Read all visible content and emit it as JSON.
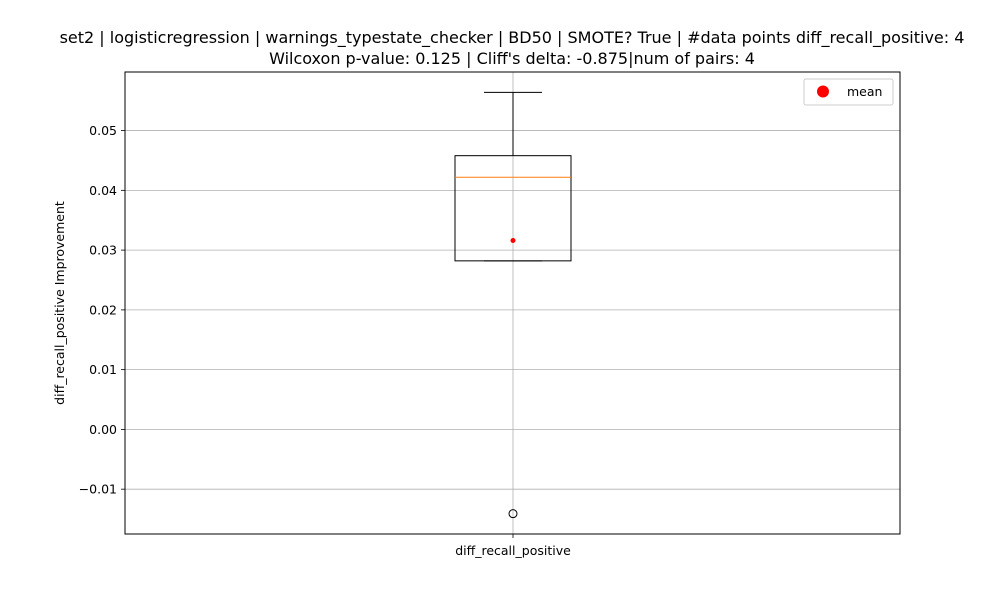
{
  "chart_data": {
    "type": "box",
    "title_line1": "set2 | logisticregression | warnings_typestate_checker | BD50 | SMOTE? True | #data points diff_recall_positive: 4",
    "title_line2": "Wilcoxon p-value: 0.125 | Cliff's delta: -0.875|num of pairs: 4",
    "xlabel": "",
    "ylabel": "diff_recall_positive Improvement",
    "categories": [
      "diff_recall_positive"
    ],
    "ylim": [
      -0.0175,
      0.0598
    ],
    "yticks": [
      -0.01,
      0.0,
      0.01,
      0.02,
      0.03,
      0.04,
      0.05
    ],
    "ytick_labels": [
      "−0.01",
      "0.00",
      "0.01",
      "0.02",
      "0.03",
      "0.04",
      "0.05"
    ],
    "grid": true,
    "box": {
      "whisker_low": 0.0282,
      "q1": 0.0282,
      "median": 0.0422,
      "q3": 0.0458,
      "whisker_high": 0.0564,
      "mean": 0.0316,
      "outliers": [
        -0.0141
      ]
    },
    "legend": {
      "position": "top-right",
      "entries": [
        {
          "label": "mean",
          "color": "#ff0000"
        }
      ]
    },
    "colors": {
      "box": "#000000",
      "median": "#ff7f0e",
      "mean": "#ff0000",
      "grid": "#b0b0b0"
    }
  }
}
